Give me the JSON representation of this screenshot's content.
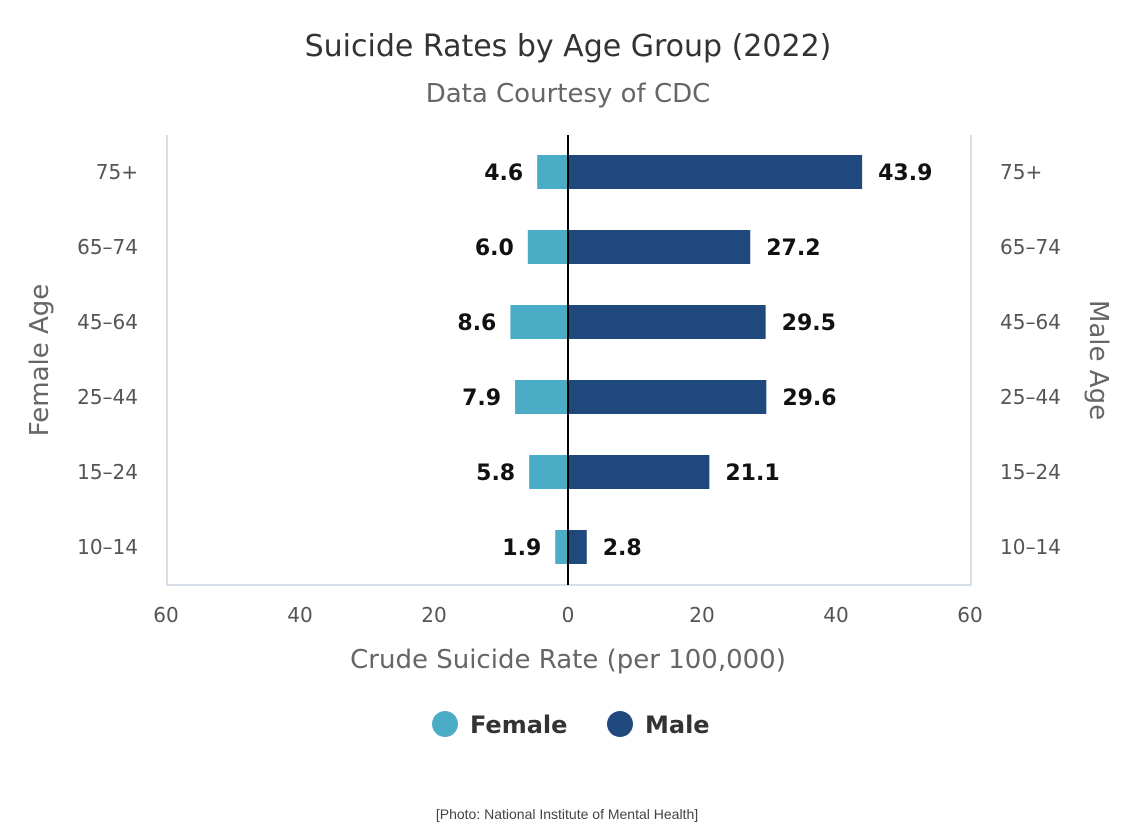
{
  "chart_data": {
    "type": "bar",
    "orientation": "horizontal-diverging",
    "title": "Suicide Rates by Age Group (2022)",
    "subtitle": "Data Courtesy of CDC",
    "xlabel": "Crude Suicide Rate (per 100,000)",
    "ylabel_left": "Female Age",
    "ylabel_right": "Male Age",
    "categories": [
      "75+",
      "65–74",
      "45–64",
      "25–44",
      "15–24",
      "10–14"
    ],
    "xlim": [
      -60,
      60
    ],
    "x_ticks": [
      "60",
      "40",
      "20",
      "0",
      "20",
      "40",
      "60"
    ],
    "x_tick_values": [
      -60,
      -40,
      -20,
      0,
      20,
      40,
      60
    ],
    "grid": false,
    "legend_position": "bottom-center",
    "series": [
      {
        "name": "Female",
        "side": "left",
        "color": "#4bacc6",
        "values": [
          4.6,
          6.0,
          8.6,
          7.9,
          5.8,
          1.9
        ],
        "labels": [
          "4.6",
          "6.0",
          "8.6",
          "7.9",
          "5.8",
          "1.9"
        ]
      },
      {
        "name": "Male",
        "side": "right",
        "color": "#1f497d",
        "values": [
          43.9,
          27.2,
          29.5,
          29.6,
          21.1,
          2.8
        ],
        "labels": [
          "43.9",
          "27.2",
          "29.5",
          "29.6",
          "21.1",
          "2.8"
        ]
      }
    ]
  },
  "caption": "[Photo: National Institute of Mental Health]"
}
